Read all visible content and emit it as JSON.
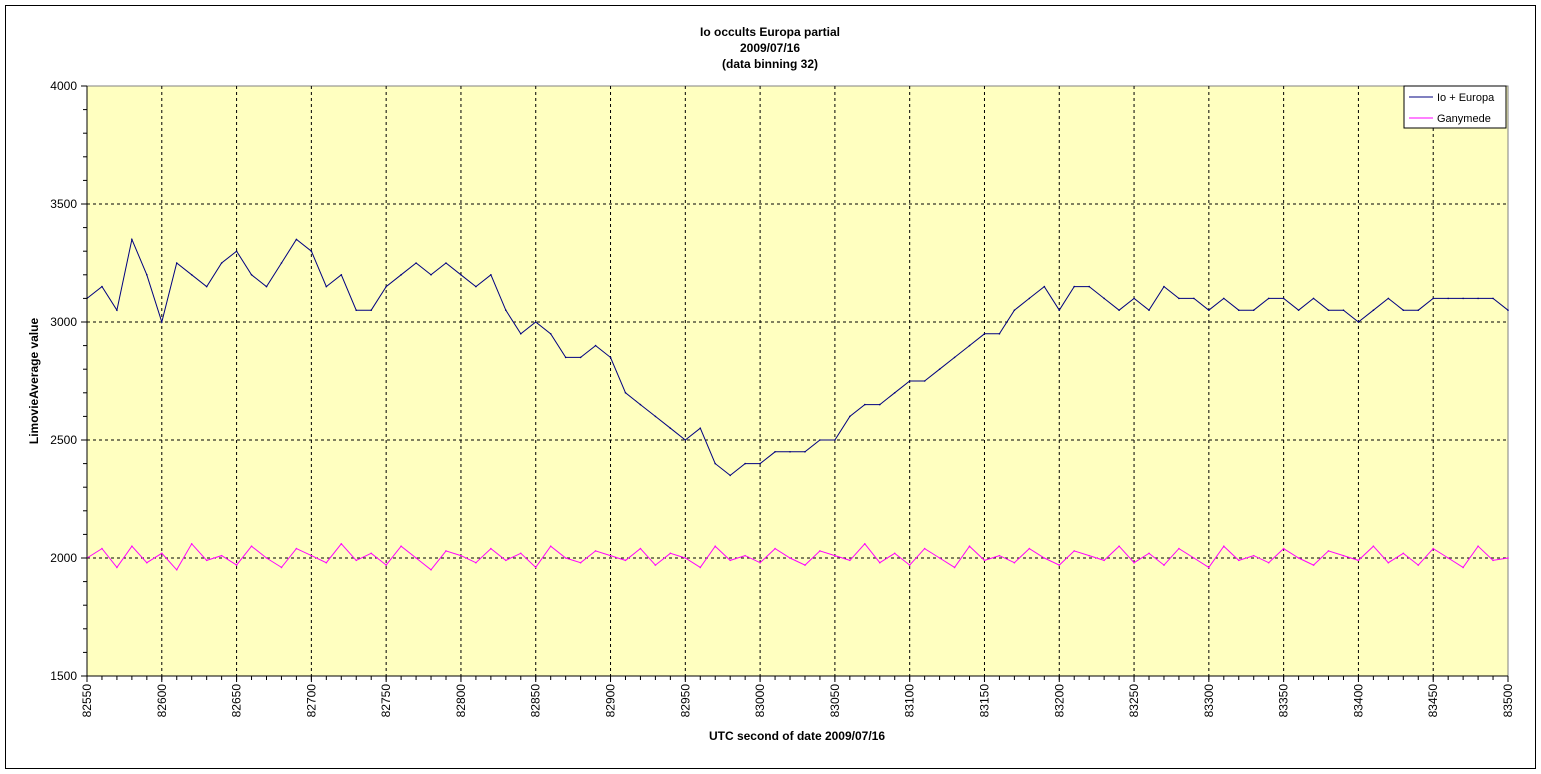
{
  "chart_data": {
    "type": "line",
    "title_lines": [
      "Io occults Europa partial",
      "2009/07/16",
      "(data binning 32)"
    ],
    "xlabel": "UTC second of date 2009/07/16",
    "ylabel": "LimovieAverage value",
    "xlim": [
      82550,
      83500
    ],
    "ylim": [
      1500,
      4000
    ],
    "xticks": [
      82550,
      82600,
      82650,
      82700,
      82750,
      82800,
      82850,
      82900,
      82950,
      83000,
      83050,
      83100,
      83150,
      83200,
      83250,
      83300,
      83350,
      83400,
      83450,
      83500
    ],
    "xtick_labels": [
      "82550",
      "82600",
      "82650",
      "82700",
      "82750",
      "82800",
      "82850",
      "82900",
      "82950",
      "83000",
      "83050",
      "83100",
      "83150",
      "83200",
      "83250",
      "83300",
      "83350",
      "83400",
      "83450",
      "83500"
    ],
    "yticks": [
      1500,
      2000,
      2500,
      3000,
      3500,
      4000
    ],
    "ytick_labels": [
      "1500",
      "2000",
      "2500",
      "3000",
      "3500",
      "4000"
    ],
    "grid": true,
    "plot_background": "#ffffc0",
    "legend_position": "top-right",
    "series": [
      {
        "name": "Io + Europa",
        "color": "#000080",
        "x": [
          82550,
          82560,
          82570,
          82580,
          82590,
          82600,
          82610,
          82620,
          82630,
          82640,
          82650,
          82660,
          82670,
          82680,
          82690,
          82700,
          82710,
          82720,
          82730,
          82740,
          82750,
          82760,
          82770,
          82780,
          82790,
          82800,
          82810,
          82820,
          82830,
          82840,
          82850,
          82860,
          82870,
          82880,
          82890,
          82900,
          82910,
          82920,
          82930,
          82940,
          82950,
          82960,
          82970,
          82980,
          82990,
          83000,
          83010,
          83020,
          83030,
          83040,
          83050,
          83060,
          83070,
          83080,
          83090,
          83100,
          83110,
          83120,
          83130,
          83140,
          83150,
          83160,
          83170,
          83180,
          83190,
          83200,
          83210,
          83220,
          83230,
          83240,
          83250,
          83260,
          83270,
          83280,
          83290,
          83300,
          83310,
          83320,
          83330,
          83340,
          83350,
          83360,
          83370,
          83380,
          83390,
          83400,
          83410,
          83420,
          83430,
          83440,
          83450,
          83460,
          83470,
          83480,
          83490,
          83500
        ],
        "y": [
          3100,
          3150,
          3050,
          3350,
          3200,
          3000,
          3250,
          3200,
          3150,
          3250,
          3300,
          3200,
          3150,
          3250,
          3350,
          3300,
          3150,
          3200,
          3050,
          3050,
          3150,
          3200,
          3250,
          3200,
          3250,
          3200,
          3150,
          3200,
          3050,
          2950,
          3000,
          2950,
          2850,
          2850,
          2900,
          2850,
          2700,
          2650,
          2600,
          2550,
          2500,
          2550,
          2400,
          2350,
          2400,
          2400,
          2450,
          2450,
          2450,
          2500,
          2500,
          2600,
          2650,
          2650,
          2700,
          2750,
          2750,
          2800,
          2850,
          2900,
          2950,
          2950,
          3050,
          3100,
          3150,
          3050,
          3150,
          3150,
          3100,
          3050,
          3100,
          3050,
          3150,
          3100,
          3100,
          3050,
          3100,
          3050,
          3050,
          3100,
          3100,
          3050,
          3100,
          3050,
          3050,
          3000,
          3050,
          3100,
          3050,
          3050,
          3100,
          3100,
          3100,
          3100,
          3100,
          3050
        ]
      },
      {
        "name": "Ganymede",
        "color": "#ff00ff",
        "x": [
          82550,
          82560,
          82570,
          82580,
          82590,
          82600,
          82610,
          82620,
          82630,
          82640,
          82650,
          82660,
          82670,
          82680,
          82690,
          82700,
          82710,
          82720,
          82730,
          82740,
          82750,
          82760,
          82770,
          82780,
          82790,
          82800,
          82810,
          82820,
          82830,
          82840,
          82850,
          82860,
          82870,
          82880,
          82890,
          82900,
          82910,
          82920,
          82930,
          82940,
          82950,
          82960,
          82970,
          82980,
          82990,
          83000,
          83010,
          83020,
          83030,
          83040,
          83050,
          83060,
          83070,
          83080,
          83090,
          83100,
          83110,
          83120,
          83130,
          83140,
          83150,
          83160,
          83170,
          83180,
          83190,
          83200,
          83210,
          83220,
          83230,
          83240,
          83250,
          83260,
          83270,
          83280,
          83290,
          83300,
          83310,
          83320,
          83330,
          83340,
          83350,
          83360,
          83370,
          83380,
          83390,
          83400,
          83410,
          83420,
          83430,
          83440,
          83450,
          83460,
          83470,
          83480,
          83490,
          83500
        ],
        "y": [
          2000,
          2040,
          1960,
          2050,
          1980,
          2020,
          1950,
          2060,
          1990,
          2010,
          1970,
          2050,
          2000,
          1960,
          2040,
          2010,
          1980,
          2060,
          1990,
          2020,
          1970,
          2050,
          2000,
          1950,
          2030,
          2010,
          1980,
          2040,
          1990,
          2020,
          1960,
          2050,
          2000,
          1980,
          2030,
          2010,
          1990,
          2040,
          1970,
          2020,
          2000,
          1960,
          2050,
          1990,
          2010,
          1980,
          2040,
          2000,
          1970,
          2030,
          2010,
          1990,
          2060,
          1980,
          2020,
          1970,
          2040,
          2000,
          1960,
          2050,
          1990,
          2010,
          1980,
          2040,
          2000,
          1970,
          2030,
          2010,
          1990,
          2050,
          1980,
          2020,
          1970,
          2040,
          2000,
          1960,
          2050,
          1990,
          2010,
          1980,
          2040,
          2000,
          1970,
          2030,
          2010,
          1990,
          2050,
          1980,
          2020,
          1970,
          2040,
          2000,
          1960,
          2050,
          1990,
          2000
        ]
      }
    ]
  }
}
